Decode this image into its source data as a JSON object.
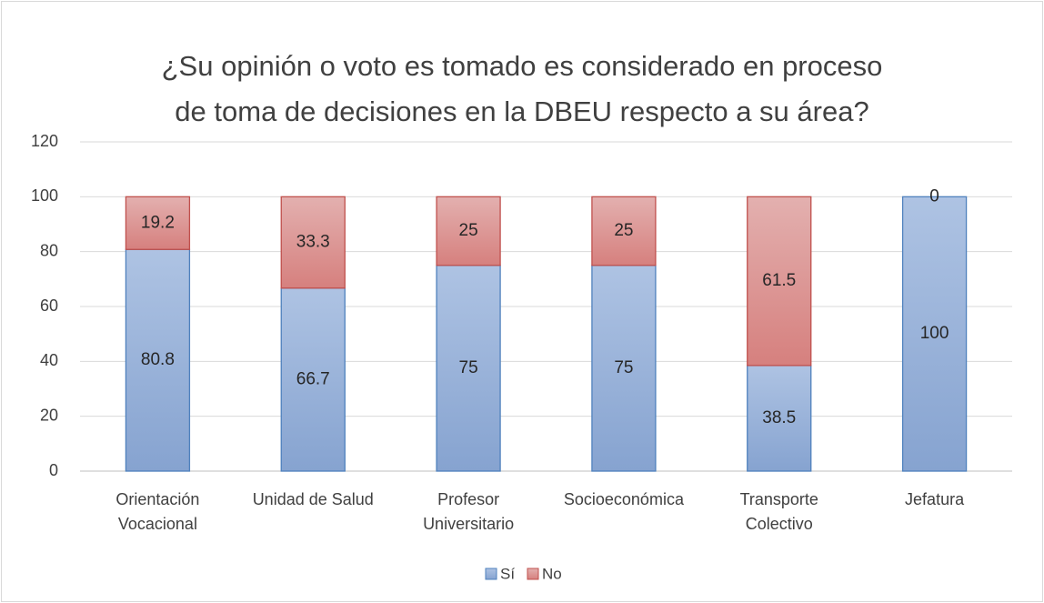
{
  "chart_data": {
    "type": "bar",
    "stacked": true,
    "title": "¿Su opinión o voto es tomado es considerado en proceso\nde toma de decisiones en la DBEU respecto a su área?",
    "categories": [
      "Orientación\nVocacional",
      "Unidad de Salud",
      "Profesor\nUniversitario",
      "Socioeconómica",
      "Transporte\nColectivo",
      "Jefatura"
    ],
    "series": [
      {
        "name": "Sí",
        "color": "#95b0d9",
        "values": [
          80.8,
          66.7,
          75,
          75,
          38.5,
          100
        ]
      },
      {
        "name": "No",
        "color": "#dc9190",
        "values": [
          19.2,
          33.3,
          25,
          25,
          61.5,
          0
        ]
      }
    ],
    "ylim": [
      0,
      120
    ],
    "yticks": [
      0,
      20,
      40,
      60,
      80,
      100,
      120
    ],
    "grid": true,
    "legend": "bottom"
  }
}
